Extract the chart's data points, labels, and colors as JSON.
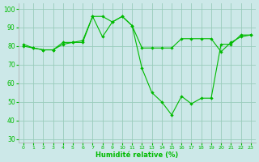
{
  "xlabel": "Humidité relative (%)",
  "bg_color": "#cce8e8",
  "grid_color": "#99ccbb",
  "line_color": "#00bb00",
  "ylim": [
    28,
    103
  ],
  "xlim": [
    -0.5,
    23.5
  ],
  "yticks": [
    30,
    40,
    50,
    60,
    70,
    80,
    90,
    100
  ],
  "xticks": [
    0,
    1,
    2,
    3,
    4,
    5,
    6,
    7,
    8,
    9,
    10,
    11,
    12,
    13,
    14,
    15,
    16,
    17,
    18,
    19,
    20,
    21,
    22,
    23
  ],
  "series": [
    {
      "x": [
        0,
        1,
        2,
        3,
        4,
        5,
        6,
        7,
        8,
        9,
        10,
        11,
        12,
        13,
        14,
        15,
        16,
        17,
        18,
        19,
        20,
        21,
        22,
        23
      ],
      "y": [
        81,
        79,
        78,
        78,
        82,
        82,
        83,
        96,
        85,
        93,
        96,
        91,
        79,
        79,
        79,
        79,
        84,
        84,
        84,
        84,
        77,
        82,
        85,
        86
      ]
    },
    {
      "x": [
        0,
        1,
        2,
        3,
        4,
        5,
        6,
        7,
        8,
        9,
        10,
        11,
        12,
        13,
        14,
        15,
        16,
        17,
        18,
        19,
        20,
        21,
        22,
        23
      ],
      "y": [
        80,
        79,
        78,
        78,
        81,
        82,
        82,
        96,
        96,
        93,
        96,
        91,
        68,
        55,
        50,
        43,
        53,
        49,
        52,
        52,
        81,
        81,
        86,
        86
      ]
    }
  ]
}
